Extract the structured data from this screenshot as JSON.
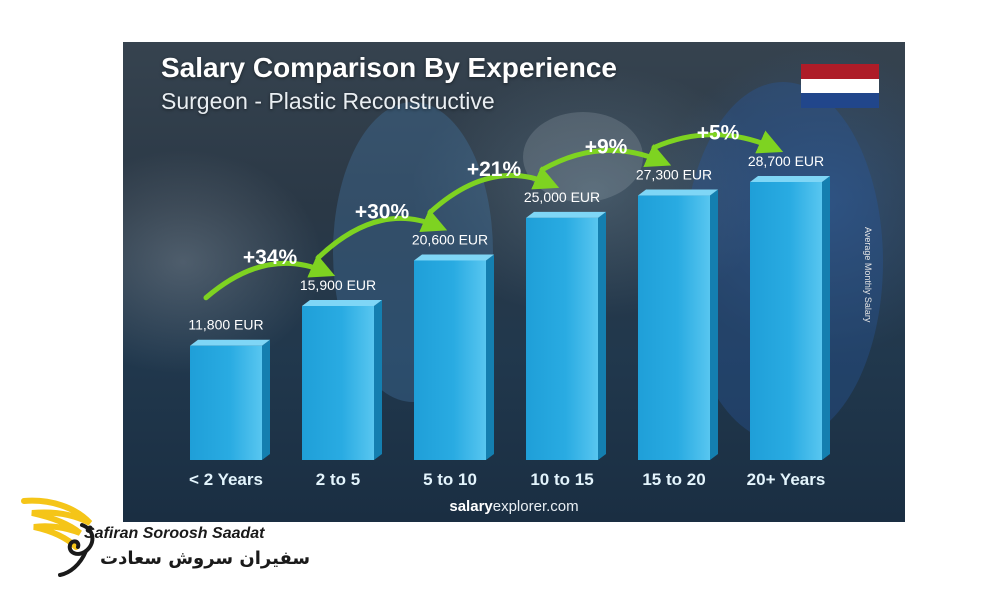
{
  "chart_data": {
    "type": "bar",
    "title": "Salary Comparison By Experience",
    "subtitle": "Surgeon - Plastic Reconstructive",
    "ylabel": "Average Monthly Salary",
    "categories": [
      "< 2 Years",
      "2 to 5",
      "5 to 10",
      "10 to 15",
      "15 to 20",
      "20+ Years"
    ],
    "values": [
      11800,
      15900,
      20600,
      25000,
      27300,
      28700
    ],
    "value_labels": [
      "11,800 EUR",
      "15,900 EUR",
      "20,600 EUR",
      "25,000 EUR",
      "27,300 EUR",
      "28,700 EUR"
    ],
    "increase_labels": [
      "+34%",
      "+30%",
      "+21%",
      "+9%",
      "+5%"
    ],
    "unit": "EUR",
    "ylim": [
      0,
      28700
    ],
    "grid": false,
    "colors": {
      "bar": "#29abe2",
      "arrow": "#7ed321",
      "label": "#ffffff"
    }
  },
  "source": {
    "bold": "salary",
    "rest": "explorer.com"
  },
  "flag": {
    "colors": [
      "#ae1c28",
      "#ffffff",
      "#21468b"
    ]
  },
  "brand": {
    "name_en": "Safiran Soroosh Saadat",
    "name_fa": "سفیران سروش سعادت",
    "colors": {
      "wing": "#f5c518",
      "text": "#1a1a1a"
    }
  }
}
